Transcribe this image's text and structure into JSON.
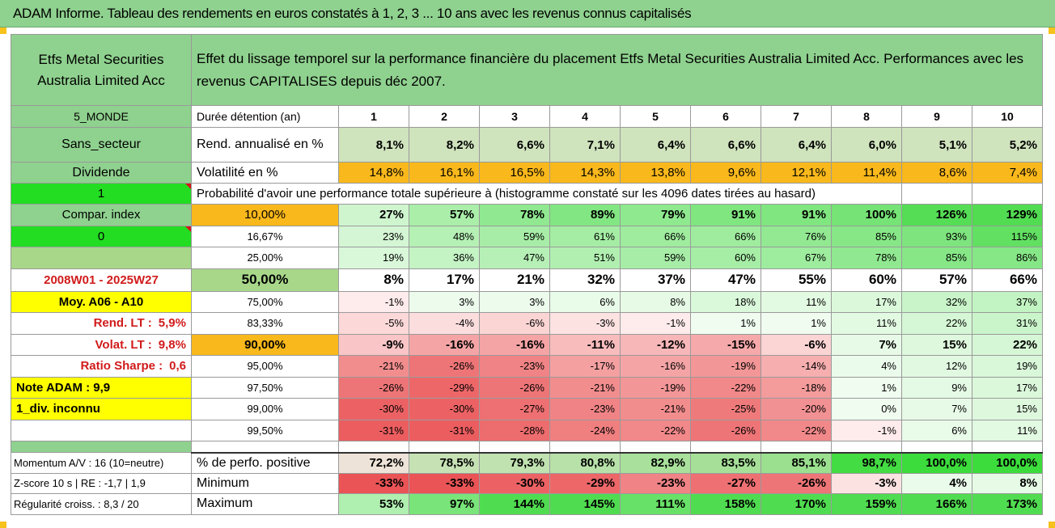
{
  "banner_title": "ADAM Informe. Tableau des rendements en euros constatés à 1, 2, 3 ... 10 ans avec les revenus connus capitalisés",
  "header": {
    "fund_name": "Etfs Metal Securities Australia Limited Acc",
    "description": "Effet du lissage temporel sur la performance financière du placement Etfs Metal Securities Australia Limited Acc. Performances avec les revenus CAPITALISES depuis déc 2007."
  },
  "info": {
    "zone": "5_MONDE",
    "sector": "Sans_secteur",
    "dividend_label": "Dividende",
    "dividend_value": "1",
    "compar_label": "Compar. index",
    "compar_value": "0",
    "period": "2008W01 - 2025W27",
    "moy_label": "Moy. A06 - A10",
    "rend_lt_label": "Rend. LT :",
    "rend_lt_value": "5,9%",
    "volat_lt_label": "Volat. LT :",
    "volat_lt_value": "9,8%",
    "sharpe_label": "Ratio Sharpe :",
    "sharpe_value": "0,6",
    "note": "Note ADAM : 9,9",
    "div_status": "1_div. inconnu",
    "momentum": "Momentum A/V : 16 (10=neutre)",
    "zscore": "Z-score 10 s | RE : -1,7 | 1,9",
    "regularity": "Régularité croiss. : 8,3 / 20"
  },
  "durations_label": "Durée détention (an)",
  "durations": [
    "1",
    "2",
    "3",
    "4",
    "5",
    "6",
    "7",
    "8",
    "9",
    "10"
  ],
  "rend_label": "Rend. annualisé en %",
  "rend": [
    "8,1%",
    "8,2%",
    "6,6%",
    "7,1%",
    "6,4%",
    "6,6%",
    "6,4%",
    "6,0%",
    "5,1%",
    "5,2%"
  ],
  "vol_label": "Volatilité en %",
  "vol": [
    "14,8%",
    "16,1%",
    "16,5%",
    "14,3%",
    "13,8%",
    "9,6%",
    "12,1%",
    "11,4%",
    "8,6%",
    "7,4%"
  ],
  "prob_title": "Probabilité d'avoir une performance totale supérieure à (histogramme constaté sur les 4096 dates tirées au hasard)",
  "prob_rows": [
    {
      "p": "10,00%",
      "v": [
        "27%",
        "57%",
        "78%",
        "89%",
        "79%",
        "91%",
        "91%",
        "100%",
        "126%",
        "129%"
      ]
    },
    {
      "p": "16,67%",
      "v": [
        "23%",
        "48%",
        "59%",
        "61%",
        "66%",
        "66%",
        "76%",
        "85%",
        "93%",
        "115%"
      ]
    },
    {
      "p": "25,00%",
      "v": [
        "19%",
        "36%",
        "47%",
        "51%",
        "59%",
        "60%",
        "67%",
        "78%",
        "85%",
        "86%"
      ]
    },
    {
      "p": "50,00%",
      "v": [
        "8%",
        "17%",
        "21%",
        "32%",
        "37%",
        "47%",
        "55%",
        "60%",
        "57%",
        "66%"
      ]
    },
    {
      "p": "75,00%",
      "v": [
        "-1%",
        "3%",
        "3%",
        "6%",
        "8%",
        "18%",
        "11%",
        "17%",
        "32%",
        "37%"
      ]
    },
    {
      "p": "83,33%",
      "v": [
        "-5%",
        "-4%",
        "-6%",
        "-3%",
        "-1%",
        "1%",
        "1%",
        "11%",
        "22%",
        "31%"
      ]
    },
    {
      "p": "90,00%",
      "v": [
        "-9%",
        "-16%",
        "-16%",
        "-11%",
        "-12%",
        "-15%",
        "-6%",
        "7%",
        "15%",
        "22%"
      ]
    },
    {
      "p": "95,00%",
      "v": [
        "-21%",
        "-26%",
        "-23%",
        "-17%",
        "-16%",
        "-19%",
        "-14%",
        "4%",
        "12%",
        "19%"
      ]
    },
    {
      "p": "97,50%",
      "v": [
        "-26%",
        "-29%",
        "-26%",
        "-21%",
        "-19%",
        "-22%",
        "-18%",
        "1%",
        "9%",
        "17%"
      ]
    },
    {
      "p": "99,00%",
      "v": [
        "-30%",
        "-30%",
        "-27%",
        "-23%",
        "-21%",
        "-25%",
        "-20%",
        "0%",
        "7%",
        "15%"
      ]
    },
    {
      "p": "99,50%",
      "v": [
        "-31%",
        "-31%",
        "-28%",
        "-24%",
        "-22%",
        "-26%",
        "-22%",
        "-1%",
        "6%",
        "11%"
      ]
    }
  ],
  "pos_label": "% de perfo. positive",
  "pos": [
    "72,2%",
    "78,5%",
    "79,3%",
    "80,8%",
    "82,9%",
    "83,5%",
    "85,1%",
    "98,7%",
    "100,0%",
    "100,0%"
  ],
  "min_label": "Minimum",
  "min": [
    "-33%",
    "-33%",
    "-30%",
    "-29%",
    "-23%",
    "-27%",
    "-26%",
    "-3%",
    "4%",
    "8%"
  ],
  "max_label": "Maximum",
  "max": [
    "53%",
    "97%",
    "144%",
    "145%",
    "111%",
    "158%",
    "170%",
    "159%",
    "166%",
    "173%"
  ]
}
